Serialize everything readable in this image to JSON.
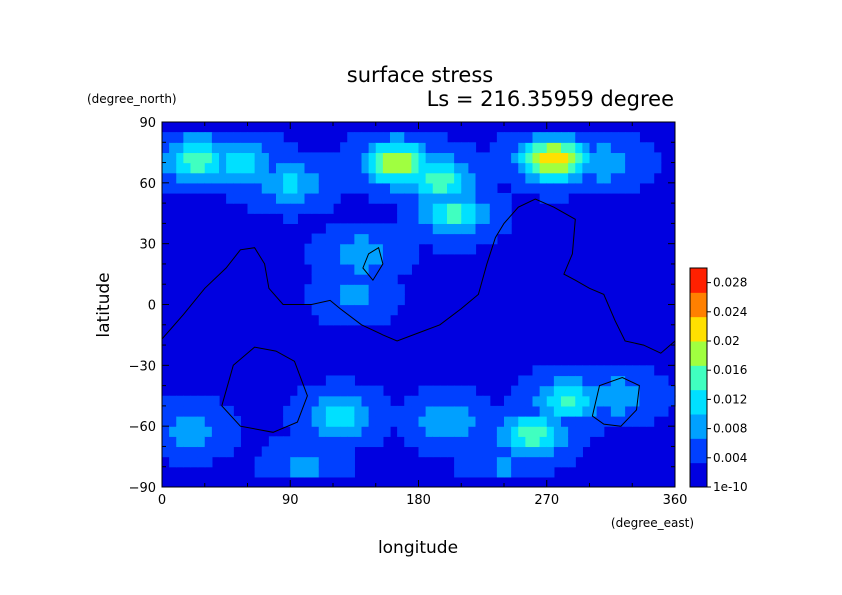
{
  "chart_data": {
    "type": "heatmap",
    "title": "surface stress",
    "subtitle": "Ls = 216.35959 degree",
    "xlabel": "longitude",
    "ylabel": "latitude",
    "x_units": "(degree_east)",
    "y_units": "(degree_north)",
    "xlim": [
      0,
      360
    ],
    "ylim": [
      -90,
      90
    ],
    "x_ticks": [
      "0",
      "90",
      "180",
      "270",
      "360"
    ],
    "y_ticks": [
      "90",
      "60",
      "30",
      "0",
      "−30",
      "−60",
      "−90"
    ],
    "colorbar": {
      "range": [
        0,
        0.03
      ],
      "tick_values": [
        0,
        0.004,
        0.008,
        0.012,
        0.016,
        0.02,
        0.024,
        0.028
      ],
      "tick_labels": [
        "1e-10",
        "0.004",
        "0.008",
        "0.012",
        "0.016",
        "0.02",
        "0.024",
        "0.028"
      ],
      "colors": [
        "#0000e0",
        "#0040ff",
        "#00a0ff",
        "#00e0ff",
        "#40ffc0",
        "#a0ff40",
        "#ffe000",
        "#ff8000",
        "#ff2000"
      ]
    },
    "background_value": 0.003,
    "features": [
      {
        "lon": 25,
        "lat": 72,
        "value": 0.016
      },
      {
        "lon": 55,
        "lat": 70,
        "value": 0.012
      },
      {
        "lon": 90,
        "lat": 60,
        "value": 0.011
      },
      {
        "lon": 165,
        "lat": 70,
        "value": 0.021
      },
      {
        "lon": 195,
        "lat": 62,
        "value": 0.016
      },
      {
        "lon": 205,
        "lat": 45,
        "value": 0.015
      },
      {
        "lon": 275,
        "lat": 72,
        "value": 0.023
      },
      {
        "lon": 310,
        "lat": 70,
        "value": 0.01
      },
      {
        "lon": 140,
        "lat": 25,
        "value": 0.01
      },
      {
        "lon": 135,
        "lat": 5,
        "value": 0.008
      },
      {
        "lon": 125,
        "lat": -55,
        "value": 0.012
      },
      {
        "lon": 200,
        "lat": -58,
        "value": 0.01
      },
      {
        "lon": 260,
        "lat": -64,
        "value": 0.015
      },
      {
        "lon": 285,
        "lat": -47,
        "value": 0.014
      },
      {
        "lon": 320,
        "lat": -45,
        "value": 0.01
      },
      {
        "lon": 20,
        "lat": -62,
        "value": 0.009
      },
      {
        "lon": 100,
        "lat": -80,
        "value": 0.008
      },
      {
        "lon": 240,
        "lat": -80,
        "value": 0.007
      }
    ],
    "contours": [
      {
        "name": "continent-outline",
        "closed": false,
        "points": [
          [
            0,
            -17
          ],
          [
            15,
            -5
          ],
          [
            30,
            8
          ],
          [
            45,
            18
          ],
          [
            55,
            27
          ],
          [
            65,
            28
          ],
          [
            72,
            20
          ],
          [
            75,
            8
          ],
          [
            85,
            0
          ],
          [
            105,
            0
          ],
          [
            118,
            2
          ],
          [
            125,
            -2
          ],
          [
            140,
            -10
          ],
          [
            155,
            -15
          ],
          [
            165,
            -18
          ],
          [
            180,
            -14
          ],
          [
            195,
            -10
          ],
          [
            210,
            -2
          ],
          [
            222,
            5
          ],
          [
            228,
            20
          ],
          [
            234,
            33
          ],
          [
            240,
            40
          ],
          [
            250,
            48
          ],
          [
            262,
            52
          ],
          [
            275,
            48
          ],
          [
            290,
            42
          ],
          [
            288,
            25
          ],
          [
            282,
            15
          ],
          [
            290,
            12
          ],
          [
            300,
            8
          ],
          [
            310,
            5
          ],
          [
            318,
            -8
          ],
          [
            325,
            -18
          ],
          [
            338,
            -20
          ],
          [
            350,
            -24
          ],
          [
            360,
            -18
          ]
        ]
      },
      {
        "name": "small-island-outline",
        "closed": true,
        "points": [
          [
            141,
            18
          ],
          [
            145,
            25
          ],
          [
            152,
            28
          ],
          [
            155,
            20
          ],
          [
            148,
            12
          ]
        ]
      },
      {
        "name": "southern-basin-outline",
        "closed": true,
        "points": [
          [
            42,
            -50
          ],
          [
            50,
            -30
          ],
          [
            65,
            -21
          ],
          [
            80,
            -23
          ],
          [
            93,
            -28
          ],
          [
            102,
            -45
          ],
          [
            95,
            -58
          ],
          [
            78,
            -63
          ],
          [
            55,
            -60
          ]
        ]
      },
      {
        "name": "eastern-basin-outline",
        "closed": true,
        "points": [
          [
            302,
            -55
          ],
          [
            307,
            -40
          ],
          [
            323,
            -36
          ],
          [
            335,
            -40
          ],
          [
            333,
            -52
          ],
          [
            322,
            -60
          ],
          [
            310,
            -59
          ]
        ]
      }
    ]
  }
}
